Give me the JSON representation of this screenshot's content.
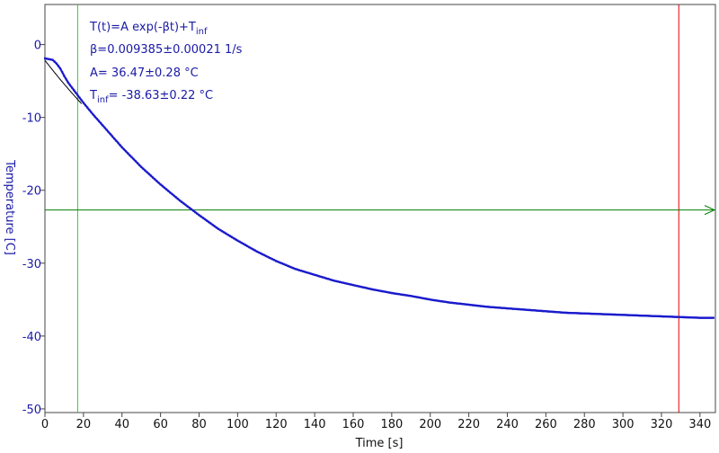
{
  "chart_data": {
    "type": "scatter",
    "xlabel": "Time [s]",
    "ylabel": "Temperature [C]",
    "xlim": [
      0,
      348
    ],
    "ylim": [
      -50.5,
      5.5
    ],
    "xticks": [
      0,
      20,
      40,
      60,
      80,
      100,
      120,
      140,
      160,
      180,
      200,
      220,
      240,
      260,
      280,
      300,
      320,
      340
    ],
    "yticks": [
      0,
      -10,
      -20,
      -30,
      -40,
      -50
    ],
    "grid": false,
    "model": {
      "A": 36.47,
      "beta": 0.009385,
      "T_inf": -38.63
    },
    "measured_series": {
      "x": [
        0,
        2,
        4,
        6,
        8,
        10,
        12,
        14,
        16,
        18,
        20,
        25,
        30,
        40,
        50,
        60,
        70,
        80,
        90,
        100,
        110,
        120,
        130,
        140,
        150,
        160,
        170,
        180,
        190,
        200,
        210,
        220,
        230,
        240,
        250,
        260,
        270,
        280,
        290,
        300,
        310,
        320,
        330,
        340,
        347
      ],
      "y": [
        -1.9,
        -2.0,
        -2.1,
        -2.6,
        -3.3,
        -4.3,
        -5.2,
        -5.9,
        -6.6,
        -7.3,
        -8.0,
        -9.6,
        -11.1,
        -14.1,
        -16.8,
        -19.2,
        -21.4,
        -23.4,
        -25.3,
        -26.9,
        -28.4,
        -29.7,
        -30.8,
        -31.6,
        -32.4,
        -33.0,
        -33.6,
        -34.1,
        -34.5,
        -35.0,
        -35.4,
        -35.7,
        -36.0,
        -36.2,
        -36.4,
        -36.6,
        -36.8,
        -36.9,
        -37.0,
        -37.1,
        -37.2,
        -37.3,
        -37.4,
        -37.5,
        -37.5
      ]
    },
    "fit_range": {
      "x_start": 0,
      "x_end": 19
    },
    "cursors": {
      "vertical_green_x": 17,
      "vertical_red_x": 329,
      "horizontal_green_y": -22.7
    },
    "colors": {
      "data": "#1a1acc",
      "fit": "#000000",
      "axis": "#444444",
      "cursor_green_v": "#33cc33",
      "cursor_green_h": "#008000",
      "cursor_red": "#e00000",
      "text_blue": "#1a1aa6"
    },
    "annotations": {
      "line1_main": "T(t)=A exp(-βt)+T",
      "line1_sub": "inf",
      "line2": "β=0.009385±0.00021 1/s",
      "line3": "A= 36.47±0.28 °C",
      "line4_pre": "T",
      "line4_sub": "inf",
      "line4_post": "= -38.63±0.22 °C"
    }
  }
}
